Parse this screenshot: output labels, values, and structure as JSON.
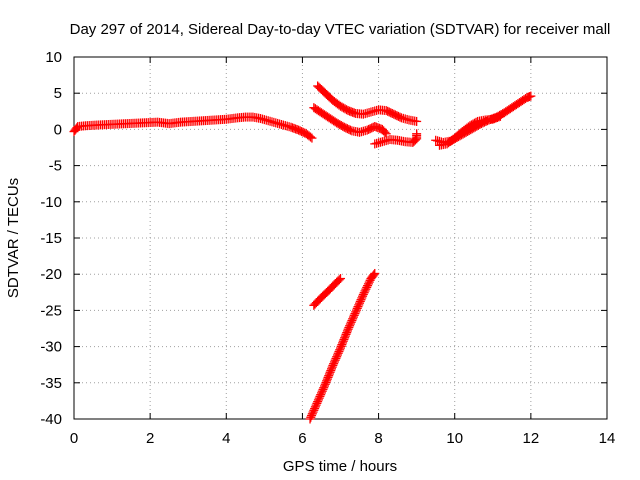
{
  "chart_data": {
    "type": "scatter",
    "title": "Day 297 of 2014, Sidereal Day-to-day VTEC variation (SDTVAR) for receiver mall",
    "xlabel": "GPS time / hours",
    "ylabel": "SDTVAR / TECUs",
    "xlim": [
      0,
      14
    ],
    "ylim": [
      -40,
      10
    ],
    "xticks": [
      0,
      2,
      4,
      6,
      8,
      10,
      12,
      14
    ],
    "yticks": [
      10,
      5,
      0,
      -5,
      -10,
      -15,
      -20,
      -25,
      -30,
      -35,
      -40
    ],
    "grid": true,
    "legend": "none",
    "marker": "plus",
    "marker_color": "#ff0000",
    "series": [
      {
        "points": [
          [
            0,
            -0.3
          ],
          [
            0.1,
            0.4
          ],
          [
            0.3,
            0.5
          ],
          [
            0.6,
            0.6
          ],
          [
            1.0,
            0.7
          ],
          [
            1.4,
            0.8
          ],
          [
            1.8,
            0.9
          ],
          [
            2.2,
            1.0
          ],
          [
            2.5,
            0.8
          ],
          [
            2.8,
            1.0
          ],
          [
            3.1,
            1.1
          ],
          [
            3.4,
            1.2
          ],
          [
            3.7,
            1.3
          ],
          [
            4.0,
            1.4
          ],
          [
            4.3,
            1.6
          ],
          [
            4.5,
            1.7
          ],
          [
            4.7,
            1.7
          ],
          [
            4.9,
            1.5
          ],
          [
            5.1,
            1.2
          ],
          [
            5.3,
            0.9
          ],
          [
            5.5,
            0.6
          ],
          [
            5.7,
            0.3
          ],
          [
            5.9,
            -0.1
          ],
          [
            6.1,
            -0.6
          ],
          [
            6.25,
            -1.2
          ]
        ]
      },
      {
        "points": [
          [
            6.4,
            6.0
          ],
          [
            6.6,
            5.0
          ],
          [
            6.8,
            4.0
          ],
          [
            7.0,
            3.2
          ],
          [
            7.2,
            2.6
          ],
          [
            7.4,
            2.2
          ],
          [
            7.6,
            2.1
          ],
          [
            7.8,
            2.4
          ],
          [
            8.0,
            2.7
          ],
          [
            8.2,
            2.6
          ],
          [
            8.4,
            2.1
          ],
          [
            8.6,
            1.6
          ],
          [
            8.8,
            1.3
          ],
          [
            9.0,
            1.1
          ]
        ]
      },
      {
        "points": [
          [
            6.3,
            3.0
          ],
          [
            6.5,
            2.3
          ],
          [
            6.7,
            1.6
          ],
          [
            6.9,
            0.9
          ],
          [
            7.1,
            0.3
          ],
          [
            7.3,
            -0.2
          ],
          [
            7.5,
            -0.4
          ],
          [
            7.7,
            -0.1
          ],
          [
            7.9,
            0.4
          ],
          [
            8.1,
            0.0
          ],
          [
            8.2,
            -0.6
          ]
        ]
      },
      {
        "points": [
          [
            7.9,
            -2.0
          ],
          [
            8.1,
            -1.7
          ],
          [
            8.3,
            -1.4
          ],
          [
            8.5,
            -1.5
          ],
          [
            8.7,
            -1.7
          ],
          [
            8.9,
            -1.8
          ],
          [
            9.0,
            -1.3
          ],
          [
            9.0,
            -0.6
          ]
        ]
      },
      {
        "points": [
          [
            9.5,
            -1.5
          ],
          [
            9.7,
            -1.8
          ],
          [
            9.9,
            -1.6
          ],
          [
            10.1,
            -1.0
          ],
          [
            10.3,
            -0.4
          ],
          [
            10.5,
            0.2
          ],
          [
            10.7,
            0.8
          ],
          [
            10.9,
            1.3
          ],
          [
            11.1,
            1.7
          ],
          [
            11.3,
            2.3
          ],
          [
            11.5,
            3.0
          ],
          [
            11.7,
            3.7
          ],
          [
            11.9,
            4.4
          ],
          [
            12.0,
            4.6
          ]
        ]
      },
      {
        "points": [
          [
            9.6,
            -2.2
          ],
          [
            9.8,
            -2.0
          ],
          [
            10.0,
            -1.2
          ],
          [
            10.2,
            -0.3
          ],
          [
            10.4,
            0.5
          ],
          [
            10.6,
            1.1
          ],
          [
            10.8,
            1.3
          ],
          [
            11.0,
            1.4
          ],
          [
            11.2,
            1.8
          ]
        ]
      },
      {
        "points": [
          [
            6.3,
            -24.3
          ],
          [
            6.5,
            -23.2
          ],
          [
            6.7,
            -22.2
          ],
          [
            6.9,
            -21.1
          ],
          [
            7.0,
            -20.6
          ]
        ]
      },
      {
        "points": [
          [
            6.2,
            -40.0
          ],
          [
            6.4,
            -37.6
          ],
          [
            6.6,
            -35.2
          ],
          [
            6.8,
            -32.6
          ],
          [
            7.0,
            -30.2
          ],
          [
            7.2,
            -27.6
          ],
          [
            7.4,
            -25.2
          ],
          [
            7.6,
            -22.8
          ],
          [
            7.8,
            -20.6
          ],
          [
            7.9,
            -19.9
          ]
        ]
      }
    ]
  }
}
